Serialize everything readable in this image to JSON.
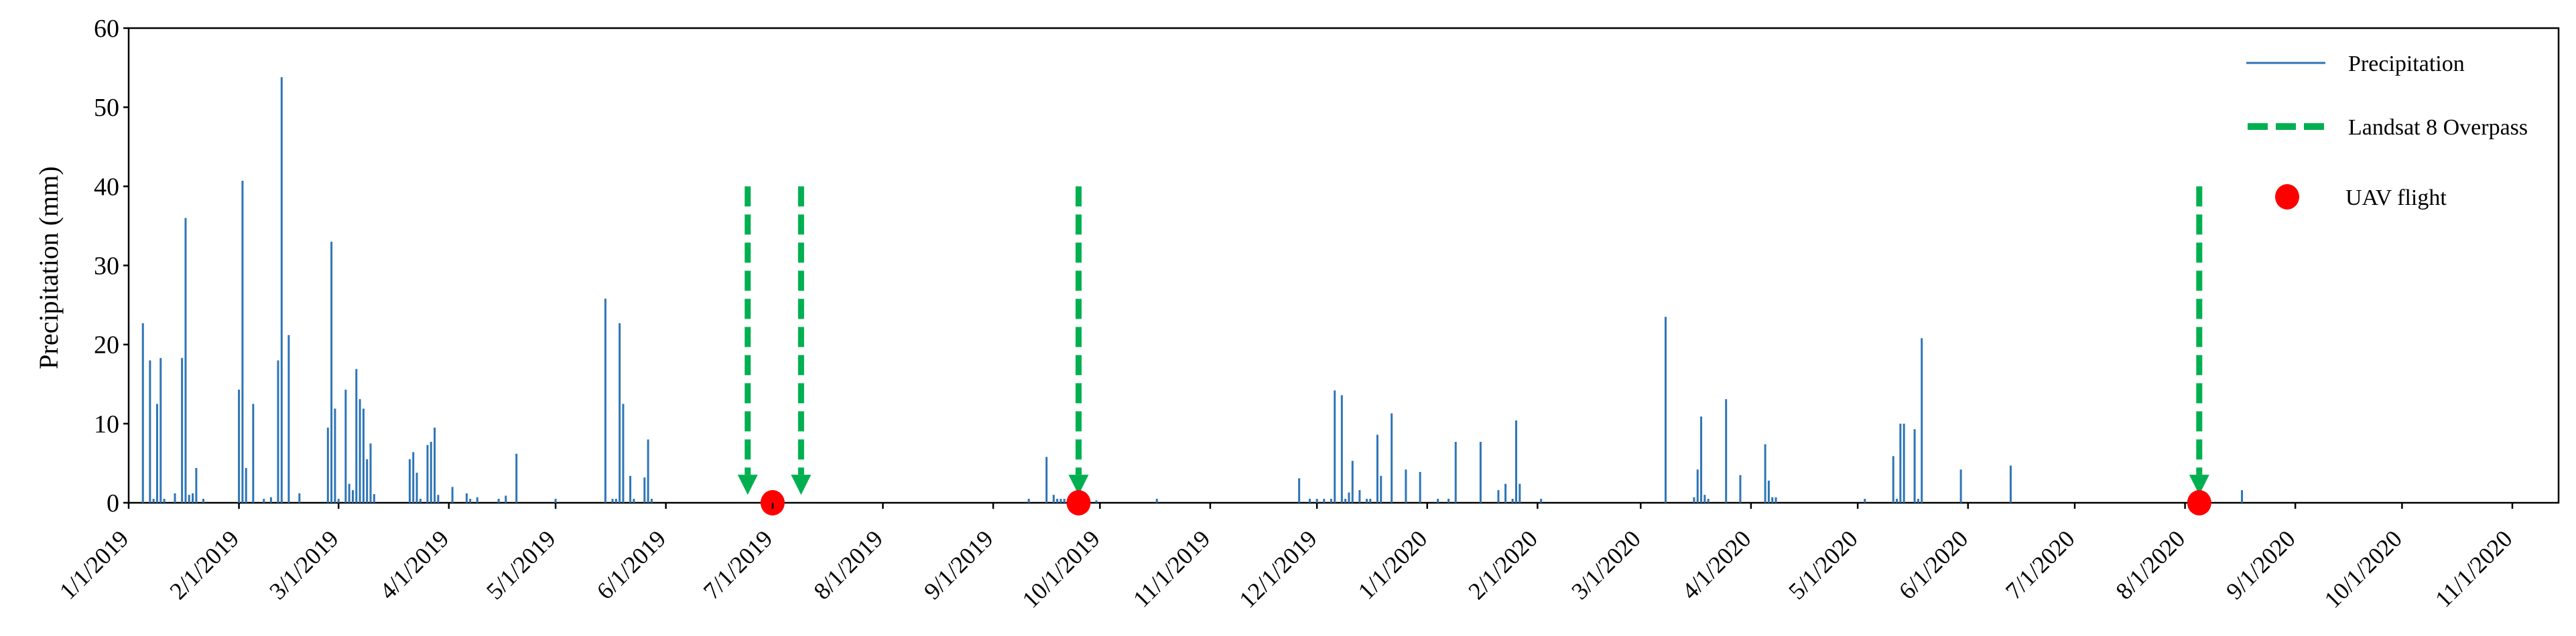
{
  "chart_data": {
    "type": "bar",
    "title": "",
    "xlabel": "",
    "ylabel": "Precipitation (mm)",
    "xlim": [
      "2019-01-01",
      "2020-11-14"
    ],
    "ylim": [
      0,
      60
    ],
    "yticks": [
      0,
      10,
      20,
      30,
      40,
      50,
      60
    ],
    "xticks": [
      "2019-01-01",
      "2019-02-01",
      "2019-03-01",
      "2019-04-01",
      "2019-05-01",
      "2019-06-01",
      "2019-07-01",
      "2019-08-01",
      "2019-09-01",
      "2019-10-01",
      "2019-11-01",
      "2019-12-01",
      "2020-01-01",
      "2020-02-01",
      "2020-03-01",
      "2020-04-01",
      "2020-05-01",
      "2020-06-01",
      "2020-07-01",
      "2020-08-01",
      "2020-09-01",
      "2020-10-01",
      "2020-11-01"
    ],
    "xtick_labels": [
      "1/1/2019",
      "2/1/2019",
      "3/1/2019",
      "4/1/2019",
      "5/1/2019",
      "6/1/2019",
      "7/1/2019",
      "8/1/2019",
      "9/1/2019",
      "10/1/2019",
      "11/1/2019",
      "12/1/2019",
      "1/1/2020",
      "2/1/2020",
      "3/1/2020",
      "4/1/2020",
      "5/1/2020",
      "6/1/2020",
      "7/1/2020",
      "8/1/2020",
      "9/1/2020",
      "10/1/2020",
      "11/1/2020"
    ],
    "grid": false,
    "legend_position": "top-right",
    "colors": {
      "precipitation": "#2E75B6",
      "landsat": "#00B050",
      "uav": "#FF0000"
    },
    "series": [
      {
        "name": "Precipitation",
        "style": "bar",
        "points": [
          [
            "2019-01-05",
            22.7
          ],
          [
            "2019-01-07",
            18
          ],
          [
            "2019-01-08",
            0.5
          ],
          [
            "2019-01-09",
            12.5
          ],
          [
            "2019-01-10",
            18.3
          ],
          [
            "2019-01-11",
            0.5
          ],
          [
            "2019-01-14",
            1.2
          ],
          [
            "2019-01-16",
            18.3
          ],
          [
            "2019-01-17",
            36
          ],
          [
            "2019-01-18",
            1
          ],
          [
            "2019-01-19",
            1.2
          ],
          [
            "2019-01-20",
            4.4
          ],
          [
            "2019-01-22",
            0.5
          ],
          [
            "2019-02-01",
            14.3
          ],
          [
            "2019-02-02",
            40.7
          ],
          [
            "2019-02-03",
            4.4
          ],
          [
            "2019-02-05",
            12.5
          ],
          [
            "2019-02-08",
            0.5
          ],
          [
            "2019-02-10",
            0.7
          ],
          [
            "2019-02-12",
            18
          ],
          [
            "2019-02-13",
            53.8
          ],
          [
            "2019-02-15",
            21.2
          ],
          [
            "2019-02-18",
            1.2
          ],
          [
            "2019-02-26",
            9.5
          ],
          [
            "2019-02-27",
            33
          ],
          [
            "2019-02-28",
            11.9
          ],
          [
            "2019-03-01",
            0.5
          ],
          [
            "2019-03-03",
            14.3
          ],
          [
            "2019-03-04",
            2.4
          ],
          [
            "2019-03-05",
            1.6
          ],
          [
            "2019-03-06",
            16.9
          ],
          [
            "2019-03-07",
            13.1
          ],
          [
            "2019-03-08",
            11.9
          ],
          [
            "2019-03-09",
            5.5
          ],
          [
            "2019-03-10",
            7.5
          ],
          [
            "2019-03-11",
            1.1
          ],
          [
            "2019-03-21",
            5.5
          ],
          [
            "2019-03-22",
            6.4
          ],
          [
            "2019-03-23",
            3.8
          ],
          [
            "2019-03-24",
            0.5
          ],
          [
            "2019-03-26",
            7.3
          ],
          [
            "2019-03-27",
            7.7
          ],
          [
            "2019-03-28",
            9.5
          ],
          [
            "2019-03-29",
            1
          ],
          [
            "2019-04-02",
            2
          ],
          [
            "2019-04-06",
            1.2
          ],
          [
            "2019-04-07",
            0.5
          ],
          [
            "2019-04-09",
            0.7
          ],
          [
            "2019-04-15",
            0.5
          ],
          [
            "2019-04-17",
            0.9
          ],
          [
            "2019-04-20",
            6.2
          ],
          [
            "2019-05-01",
            0.5
          ],
          [
            "2019-05-15",
            25.8
          ],
          [
            "2019-05-17",
            0.5
          ],
          [
            "2019-05-18",
            0.5
          ],
          [
            "2019-05-19",
            22.7
          ],
          [
            "2019-05-20",
            12.5
          ],
          [
            "2019-05-22",
            3.4
          ],
          [
            "2019-05-23",
            0.5
          ],
          [
            "2019-05-26",
            3.2
          ],
          [
            "2019-05-27",
            8
          ],
          [
            "2019-05-28",
            0.5
          ],
          [
            "2019-09-11",
            0.5
          ],
          [
            "2019-09-16",
            5.8
          ],
          [
            "2019-09-18",
            1
          ],
          [
            "2019-09-19",
            0.5
          ],
          [
            "2019-09-20",
            0.5
          ],
          [
            "2019-09-21",
            0.5
          ],
          [
            "2019-09-30",
            0.3
          ],
          [
            "2019-10-17",
            0.5
          ],
          [
            "2019-11-26",
            3.1
          ],
          [
            "2019-11-29",
            0.5
          ],
          [
            "2019-12-01",
            0.5
          ],
          [
            "2019-12-03",
            0.5
          ],
          [
            "2019-12-05",
            0.5
          ],
          [
            "2019-12-06",
            14.2
          ],
          [
            "2019-12-08",
            13.6
          ],
          [
            "2019-12-09",
            0.5
          ],
          [
            "2019-12-10",
            1.3
          ],
          [
            "2019-12-11",
            5.3
          ],
          [
            "2019-12-13",
            1.6
          ],
          [
            "2019-12-15",
            0.5
          ],
          [
            "2019-12-16",
            0.5
          ],
          [
            "2019-12-18",
            8.6
          ],
          [
            "2019-12-19",
            3.4
          ],
          [
            "2019-12-22",
            11.3
          ],
          [
            "2019-12-26",
            4.2
          ],
          [
            "2019-12-30",
            3.9
          ],
          [
            "2020-01-04",
            0.5
          ],
          [
            "2020-01-07",
            0.5
          ],
          [
            "2020-01-09",
            7.7
          ],
          [
            "2020-01-16",
            7.7
          ],
          [
            "2020-01-21",
            1.6
          ],
          [
            "2020-01-23",
            2.4
          ],
          [
            "2020-01-25",
            0.5
          ],
          [
            "2020-01-26",
            10.4
          ],
          [
            "2020-01-27",
            2.4
          ],
          [
            "2020-02-02",
            0.5
          ],
          [
            "2020-03-08",
            23.5
          ],
          [
            "2020-03-16",
            0.7
          ],
          [
            "2020-03-17",
            4.2
          ],
          [
            "2020-03-18",
            10.9
          ],
          [
            "2020-03-19",
            1
          ],
          [
            "2020-03-20",
            0.5
          ],
          [
            "2020-03-25",
            13.1
          ],
          [
            "2020-03-29",
            3.5
          ],
          [
            "2020-04-05",
            7.4
          ],
          [
            "2020-04-06",
            2.8
          ],
          [
            "2020-04-07",
            0.7
          ],
          [
            "2020-04-08",
            0.7
          ],
          [
            "2020-05-03",
            0.5
          ],
          [
            "2020-05-11",
            5.9
          ],
          [
            "2020-05-12",
            0.5
          ],
          [
            "2020-05-13",
            10
          ],
          [
            "2020-05-14",
            10
          ],
          [
            "2020-05-17",
            9.3
          ],
          [
            "2020-05-18",
            0.5
          ],
          [
            "2020-05-19",
            20.8
          ],
          [
            "2020-05-30",
            4.2
          ],
          [
            "2020-06-13",
            4.7
          ],
          [
            "2020-08-17",
            1.6
          ]
        ]
      },
      {
        "name": "Landsat 8 Overpass",
        "style": "dashed-arrow",
        "arrow_from": 40,
        "arrow_to": 1,
        "dates": [
          "2019-06-24",
          "2019-07-09",
          "2019-09-25",
          "2020-08-05"
        ]
      },
      {
        "name": "UAV flight",
        "style": "marker",
        "y": 0,
        "dates": [
          "2019-07-01",
          "2019-09-25",
          "2020-08-05"
        ]
      }
    ]
  }
}
